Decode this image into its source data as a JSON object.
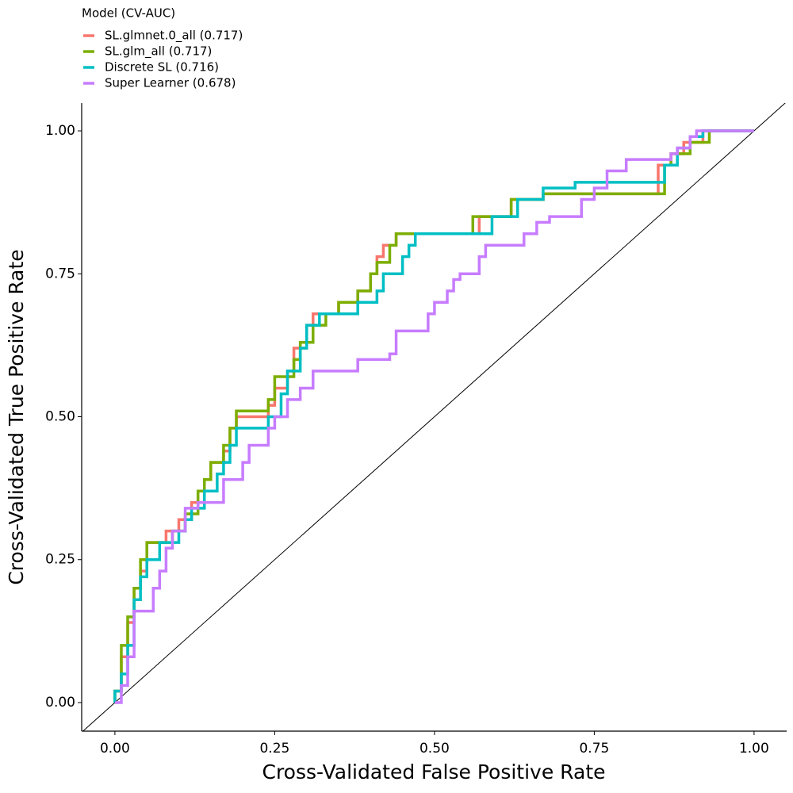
{
  "chart_data": {
    "type": "line",
    "xlabel": "Cross-Validated False Positive Rate",
    "ylabel": "Cross-Validated True Positive Rate",
    "legend_title": "Model (CV-AUC)",
    "legend": "top-left",
    "xlim": [
      -0.052,
      1.051
    ],
    "ylim": [
      -0.05,
      1.0486
    ],
    "xticks": [
      {
        "value": 0,
        "label": "0.00"
      },
      {
        "value": 0.25,
        "label": "0.25"
      },
      {
        "value": 0.5,
        "label": "0.50"
      },
      {
        "value": 0.75,
        "label": "0.75"
      },
      {
        "value": 1,
        "label": "1.00"
      }
    ],
    "yticks": [
      {
        "value": 0,
        "label": "0.00"
      },
      {
        "value": 0.25,
        "label": "0.25"
      },
      {
        "value": 0.5,
        "label": "0.50"
      },
      {
        "value": 0.75,
        "label": "0.75"
      },
      {
        "value": 1,
        "label": "1.00"
      }
    ],
    "series": [
      {
        "name": "SL.glmnet.0_all (0.717)",
        "color": "#F8766D",
        "x": [
          0,
          0,
          0.01,
          0.01,
          0.02,
          0.02,
          0.03,
          0.03,
          0.04,
          0.04,
          0.05,
          0.05,
          0.08,
          0.08,
          0.1,
          0.1,
          0.12,
          0.12,
          0.14,
          0.14,
          0.15,
          0.15,
          0.17,
          0.17,
          0.18,
          0.18,
          0.19,
          0.19,
          0.24,
          0.24,
          0.25,
          0.25,
          0.27,
          0.27,
          0.28,
          0.28,
          0.3,
          0.3,
          0.31,
          0.31,
          0.35,
          0.35,
          0.38,
          0.38,
          0.4,
          0.4,
          0.41,
          0.41,
          0.42,
          0.42,
          0.44,
          0.44,
          0.57,
          0.57,
          0.62,
          0.62,
          0.67,
          0.67,
          0.85,
          0.85,
          0.87,
          0.87,
          0.89,
          0.89,
          0.92,
          0.92,
          1
        ],
        "values": [
          0,
          0.02,
          0.02,
          0.08,
          0.08,
          0.14,
          0.14,
          0.2,
          0.2,
          0.23,
          0.23,
          0.28,
          0.28,
          0.3,
          0.3,
          0.32,
          0.32,
          0.35,
          0.35,
          0.39,
          0.39,
          0.42,
          0.42,
          0.44,
          0.44,
          0.48,
          0.48,
          0.5,
          0.5,
          0.52,
          0.52,
          0.55,
          0.55,
          0.58,
          0.58,
          0.62,
          0.62,
          0.66,
          0.66,
          0.68,
          0.68,
          0.7,
          0.7,
          0.72,
          0.72,
          0.75,
          0.75,
          0.78,
          0.78,
          0.8,
          0.8,
          0.82,
          0.82,
          0.85,
          0.85,
          0.88,
          0.88,
          0.89,
          0.89,
          0.94,
          0.94,
          0.96,
          0.96,
          0.98,
          0.98,
          1,
          1
        ]
      },
      {
        "name": "SL.glm_all (0.717)",
        "color": "#7CAE00",
        "x": [
          0,
          0,
          0.01,
          0.01,
          0.02,
          0.02,
          0.03,
          0.03,
          0.04,
          0.04,
          0.05,
          0.05,
          0.09,
          0.09,
          0.11,
          0.11,
          0.13,
          0.13,
          0.14,
          0.14,
          0.15,
          0.15,
          0.17,
          0.17,
          0.18,
          0.18,
          0.19,
          0.19,
          0.24,
          0.24,
          0.25,
          0.25,
          0.28,
          0.28,
          0.29,
          0.29,
          0.31,
          0.31,
          0.33,
          0.33,
          0.35,
          0.35,
          0.38,
          0.38,
          0.4,
          0.4,
          0.41,
          0.41,
          0.43,
          0.43,
          0.44,
          0.44,
          0.56,
          0.56,
          0.62,
          0.62,
          0.67,
          0.67,
          0.86,
          0.86,
          0.87,
          0.87,
          0.9,
          0.9,
          0.93,
          0.93,
          1
        ],
        "values": [
          0,
          0.02,
          0.02,
          0.1,
          0.1,
          0.15,
          0.15,
          0.2,
          0.2,
          0.25,
          0.25,
          0.28,
          0.28,
          0.3,
          0.3,
          0.33,
          0.33,
          0.37,
          0.37,
          0.39,
          0.39,
          0.42,
          0.42,
          0.45,
          0.45,
          0.48,
          0.48,
          0.51,
          0.51,
          0.53,
          0.53,
          0.57,
          0.57,
          0.6,
          0.6,
          0.63,
          0.63,
          0.66,
          0.66,
          0.68,
          0.68,
          0.7,
          0.7,
          0.72,
          0.72,
          0.75,
          0.75,
          0.77,
          0.77,
          0.8,
          0.8,
          0.82,
          0.82,
          0.85,
          0.85,
          0.88,
          0.88,
          0.89,
          0.89,
          0.94,
          0.94,
          0.96,
          0.96,
          0.98,
          0.98,
          1,
          1
        ]
      },
      {
        "name": "Discrete SL (0.716)",
        "color": "#00BFC4",
        "x": [
          0,
          0,
          0.01,
          0.01,
          0.02,
          0.02,
          0.03,
          0.03,
          0.04,
          0.04,
          0.05,
          0.05,
          0.07,
          0.07,
          0.1,
          0.1,
          0.11,
          0.11,
          0.12,
          0.12,
          0.14,
          0.14,
          0.16,
          0.16,
          0.17,
          0.17,
          0.18,
          0.18,
          0.19,
          0.19,
          0.24,
          0.24,
          0.26,
          0.26,
          0.27,
          0.27,
          0.29,
          0.29,
          0.3,
          0.3,
          0.32,
          0.32,
          0.38,
          0.38,
          0.41,
          0.41,
          0.42,
          0.42,
          0.45,
          0.45,
          0.46,
          0.46,
          0.47,
          0.47,
          0.59,
          0.59,
          0.63,
          0.63,
          0.67,
          0.67,
          0.72,
          0.72,
          0.86,
          0.86,
          0.88,
          0.88,
          0.9,
          0.9,
          0.92,
          0.92,
          1
        ],
        "values": [
          0,
          0.02,
          0.02,
          0.05,
          0.05,
          0.1,
          0.1,
          0.18,
          0.18,
          0.22,
          0.22,
          0.25,
          0.25,
          0.28,
          0.28,
          0.3,
          0.3,
          0.32,
          0.32,
          0.34,
          0.34,
          0.37,
          0.37,
          0.4,
          0.4,
          0.42,
          0.42,
          0.45,
          0.45,
          0.48,
          0.48,
          0.5,
          0.5,
          0.54,
          0.54,
          0.58,
          0.58,
          0.62,
          0.62,
          0.66,
          0.66,
          0.68,
          0.68,
          0.7,
          0.7,
          0.72,
          0.72,
          0.75,
          0.75,
          0.78,
          0.78,
          0.8,
          0.8,
          0.82,
          0.82,
          0.85,
          0.85,
          0.88,
          0.88,
          0.9,
          0.9,
          0.91,
          0.91,
          0.94,
          0.94,
          0.97,
          0.97,
          0.99,
          0.99,
          1,
          1
        ]
      },
      {
        "name": "Super Learner (0.678)",
        "color": "#C77CFF",
        "x": [
          0,
          0.01,
          0.01,
          0.02,
          0.02,
          0.03,
          0.03,
          0.06,
          0.06,
          0.07,
          0.07,
          0.08,
          0.08,
          0.09,
          0.09,
          0.11,
          0.11,
          0.13,
          0.13,
          0.17,
          0.17,
          0.2,
          0.2,
          0.21,
          0.21,
          0.24,
          0.24,
          0.25,
          0.25,
          0.27,
          0.27,
          0.29,
          0.29,
          0.31,
          0.31,
          0.38,
          0.38,
          0.43,
          0.43,
          0.44,
          0.44,
          0.49,
          0.49,
          0.5,
          0.5,
          0.52,
          0.52,
          0.53,
          0.53,
          0.54,
          0.54,
          0.57,
          0.57,
          0.58,
          0.58,
          0.64,
          0.64,
          0.66,
          0.66,
          0.68,
          0.68,
          0.73,
          0.73,
          0.75,
          0.75,
          0.77,
          0.77,
          0.8,
          0.8,
          0.87,
          0.87,
          0.88,
          0.88,
          0.9,
          0.9,
          0.91,
          0.91,
          1
        ],
        "values": [
          0,
          0,
          0.03,
          0.03,
          0.08,
          0.08,
          0.16,
          0.16,
          0.2,
          0.2,
          0.23,
          0.23,
          0.27,
          0.27,
          0.3,
          0.3,
          0.34,
          0.34,
          0.35,
          0.35,
          0.39,
          0.39,
          0.42,
          0.42,
          0.45,
          0.45,
          0.48,
          0.48,
          0.5,
          0.5,
          0.53,
          0.53,
          0.55,
          0.55,
          0.58,
          0.58,
          0.6,
          0.6,
          0.61,
          0.61,
          0.65,
          0.65,
          0.68,
          0.68,
          0.7,
          0.7,
          0.72,
          0.72,
          0.74,
          0.74,
          0.75,
          0.75,
          0.78,
          0.78,
          0.8,
          0.8,
          0.82,
          0.82,
          0.84,
          0.84,
          0.85,
          0.85,
          0.88,
          0.88,
          0.9,
          0.9,
          0.93,
          0.93,
          0.95,
          0.95,
          0.96,
          0.96,
          0.97,
          0.97,
          0.99,
          0.99,
          1,
          1
        ]
      }
    ]
  }
}
